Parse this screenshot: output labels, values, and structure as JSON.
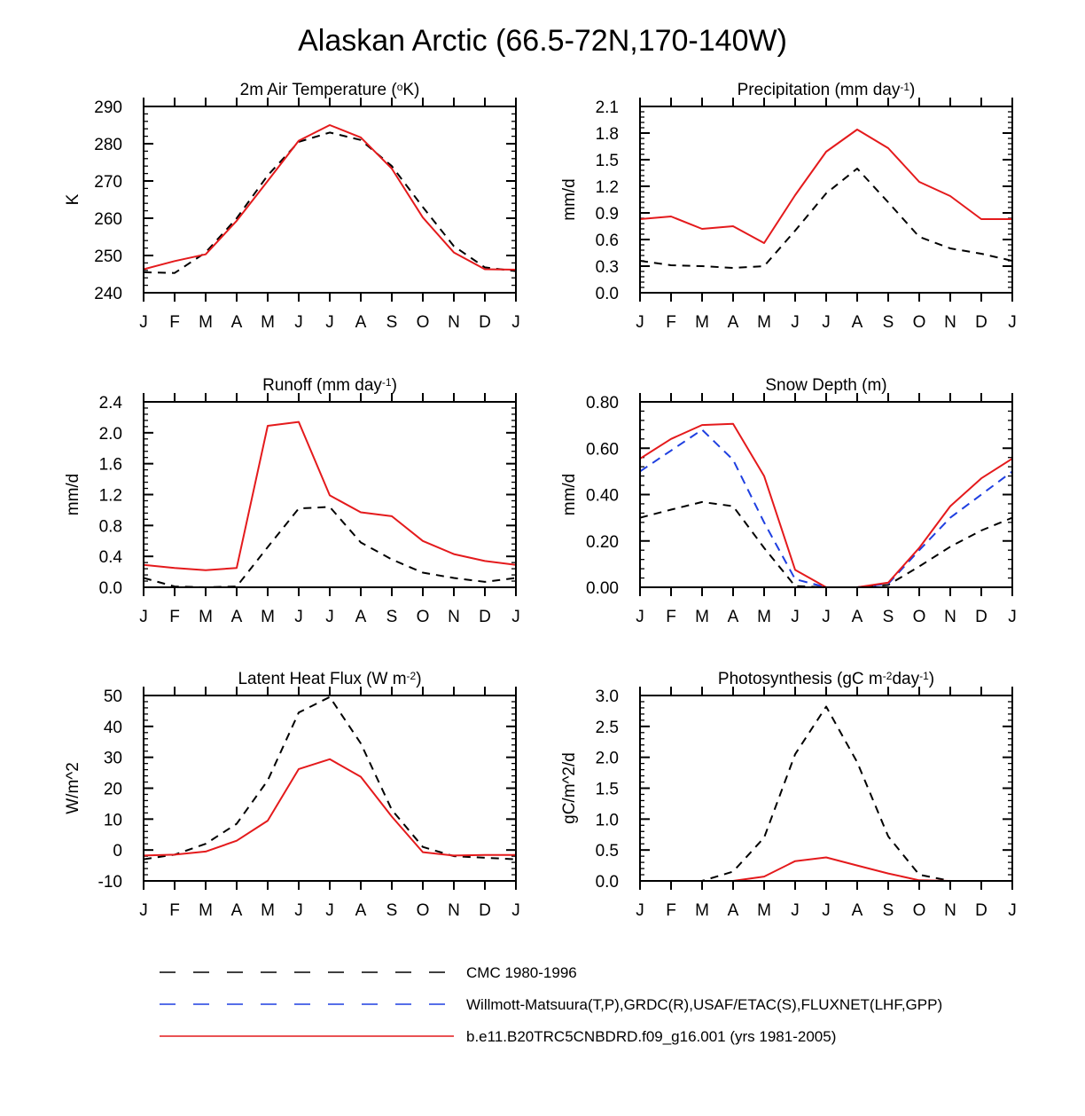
{
  "figure": {
    "title": "Alaskan Arctic (66.5-72N,170-140W)"
  },
  "colors": {
    "cmc": "#000000",
    "obs": "#1f3fe0",
    "model": "#e41a1c"
  },
  "legend": [
    {
      "key": "cmc",
      "label": "CMC 1980-1996",
      "style": "dashed"
    },
    {
      "key": "obs",
      "label": "Willmott-Matsuura(T,P),GRDC(R),USAF/ETAC(S),FLUXNET(LHF,GPP)",
      "style": "dashed"
    },
    {
      "key": "model",
      "label": "b.e11.B20TRC5CNBDRD.f09_g16.001 (yrs 1981-2005)",
      "style": "solid"
    }
  ],
  "chart_data": [
    {
      "id": "air-temperature",
      "type": "line",
      "title": "2m Air Temperature (°K)",
      "title_parts": [
        {
          "t": "2m Air Temperature ("
        },
        {
          "t": "o",
          "sup": true
        },
        {
          "t": "K)"
        }
      ],
      "ylabel": "K",
      "ylim": [
        240,
        290
      ],
      "yticks": [
        "240",
        "250",
        "260",
        "270",
        "280",
        "290"
      ],
      "categories": [
        "J",
        "F",
        "M",
        "A",
        "M",
        "J",
        "J",
        "A",
        "S",
        "O",
        "N",
        "D",
        "J"
      ],
      "series": [
        {
          "key": "cmc",
          "name": "CMC 1980-1996",
          "values": [
            245.5,
            245.3,
            250.8,
            260,
            271.5,
            280.5,
            283,
            281,
            274,
            263,
            252.5,
            246.8,
            245.8
          ]
        },
        {
          "key": "model",
          "name": "b.e11.B20TRC5CNBDRD.f09_g16.001 (yrs 1981-2005)",
          "values": [
            246.3,
            248.5,
            250.3,
            259.3,
            270,
            280.8,
            285,
            281.7,
            273.3,
            260.2,
            250.8,
            246.3,
            246.2
          ]
        }
      ]
    },
    {
      "id": "precipitation",
      "type": "line",
      "title": "Precipitation (mm day-1)",
      "title_parts": [
        {
          "t": "Precipitation (mm day"
        },
        {
          "t": "-1",
          "sup": true
        },
        {
          "t": ")"
        }
      ],
      "ylabel": "mm/d",
      "ylim": [
        0,
        2.1
      ],
      "yticks": [
        "0.0",
        "0.3",
        "0.6",
        "0.9",
        "1.2",
        "1.5",
        "1.8",
        "2.1"
      ],
      "categories": [
        "J",
        "F",
        "M",
        "A",
        "M",
        "J",
        "J",
        "A",
        "S",
        "O",
        "N",
        "D",
        "J"
      ],
      "series": [
        {
          "key": "cmc",
          "name": "CMC 1980-1996",
          "values": [
            0.36,
            0.31,
            0.3,
            0.28,
            0.3,
            0.7,
            1.12,
            1.4,
            1.02,
            0.63,
            0.5,
            0.44,
            0.36
          ]
        },
        {
          "key": "model",
          "name": "b.e11.B20TRC5CNBDRD.f09_g16.001 (yrs 1981-2005)",
          "values": [
            0.83,
            0.86,
            0.72,
            0.75,
            0.56,
            1.1,
            1.59,
            1.84,
            1.63,
            1.25,
            1.09,
            0.83,
            0.83
          ]
        }
      ]
    },
    {
      "id": "runoff",
      "type": "line",
      "title": "Runoff (mm day-1)",
      "title_parts": [
        {
          "t": "Runoff (mm day"
        },
        {
          "t": "-1",
          "sup": true
        },
        {
          "t": ")"
        }
      ],
      "ylabel": "mm/d",
      "ylim": [
        0,
        2.4
      ],
      "yticks": [
        "0.0",
        "0.4",
        "0.8",
        "1.2",
        "1.6",
        "2.0",
        "2.4"
      ],
      "categories": [
        "J",
        "F",
        "M",
        "A",
        "M",
        "J",
        "J",
        "A",
        "S",
        "O",
        "N",
        "D",
        "J"
      ],
      "series": [
        {
          "key": "cmc",
          "name": "CMC 1980-1996",
          "values": [
            0.12,
            0.01,
            0.0,
            0.01,
            0.52,
            1.02,
            1.04,
            0.58,
            0.36,
            0.19,
            0.12,
            0.07,
            0.12
          ]
        },
        {
          "key": "model",
          "name": "b.e11.B20TRC5CNBDRD.f09_g16.001 (yrs 1981-2005)",
          "values": [
            0.29,
            0.25,
            0.22,
            0.25,
            2.09,
            2.14,
            1.19,
            0.97,
            0.92,
            0.6,
            0.43,
            0.34,
            0.29
          ]
        }
      ]
    },
    {
      "id": "snow-depth",
      "type": "line",
      "title": "Snow Depth (m)",
      "title_parts": [
        {
          "t": "Snow Depth (m)"
        }
      ],
      "ylabel": "mm/d",
      "ylim": [
        0,
        0.8
      ],
      "yticks": [
        "0.00",
        "0.20",
        "0.40",
        "0.60",
        "0.80"
      ],
      "categories": [
        "J",
        "F",
        "M",
        "A",
        "M",
        "J",
        "J",
        "A",
        "S",
        "O",
        "N",
        "D",
        "J"
      ],
      "series": [
        {
          "key": "cmc",
          "name": "CMC 1980-1996",
          "values": [
            0.3,
            0.335,
            0.368,
            0.35,
            0.17,
            0.005,
            0.0,
            0.0,
            0.01,
            0.09,
            0.175,
            0.245,
            0.3
          ]
        },
        {
          "key": "obs",
          "name": "Willmott-Matsuura(T,P),GRDC(R),USAF/ETAC(S),FLUXNET(LHF,GPP)",
          "values": [
            0.5,
            0.59,
            0.68,
            0.55,
            0.28,
            0.035,
            0.0,
            0.0,
            0.015,
            0.16,
            0.3,
            0.4,
            0.5
          ]
        },
        {
          "key": "model",
          "name": "b.e11.B20TRC5CNBDRD.f09_g16.001 (yrs 1981-2005)",
          "values": [
            0.555,
            0.64,
            0.7,
            0.705,
            0.48,
            0.075,
            0.0,
            0.0,
            0.02,
            0.17,
            0.35,
            0.47,
            0.555
          ]
        }
      ]
    },
    {
      "id": "latent-heat-flux",
      "type": "line",
      "title": "Latent Heat Flux (W m-2)",
      "title_parts": [
        {
          "t": "Latent Heat Flux (W m"
        },
        {
          "t": "-2",
          "sup": true
        },
        {
          "t": ")"
        }
      ],
      "ylabel": "W/m^2",
      "ylim": [
        -10,
        50
      ],
      "yticks": [
        "-10",
        "0",
        "10",
        "20",
        "30",
        "40",
        "50"
      ],
      "categories": [
        "J",
        "F",
        "M",
        "A",
        "M",
        "J",
        "J",
        "A",
        "S",
        "O",
        "N",
        "D",
        "J"
      ],
      "series": [
        {
          "key": "cmc",
          "name": "CMC 1980-1996",
          "values": [
            -3,
            -1.5,
            2,
            8.5,
            22.5,
            44.5,
            49.5,
            34.5,
            13,
            1,
            -2,
            -2.5,
            -3
          ]
        },
        {
          "key": "model",
          "name": "b.e11.B20TRC5CNBDRD.f09_g16.001 (yrs 1981-2005)",
          "values": [
            -1.8,
            -1.5,
            -0.5,
            3,
            9.5,
            26.2,
            29.4,
            23.7,
            10.8,
            -0.7,
            -1.8,
            -1.6,
            -1.6
          ]
        }
      ]
    },
    {
      "id": "photosynthesis",
      "type": "line",
      "title": "Photosynthesis (gC m-2day-1)",
      "title_parts": [
        {
          "t": "Photosynthesis (gC m"
        },
        {
          "t": "-2",
          "sup": true
        },
        {
          "t": "day"
        },
        {
          "t": "-1",
          "sup": true
        },
        {
          "t": ")"
        }
      ],
      "ylabel": "gC/m^2/d",
      "ylim": [
        0,
        3.0
      ],
      "yticks": [
        "0.0",
        "0.5",
        "1.0",
        "1.5",
        "2.0",
        "2.5",
        "3.0"
      ],
      "categories": [
        "J",
        "F",
        "M",
        "A",
        "M",
        "J",
        "J",
        "A",
        "S",
        "O",
        "N",
        "D",
        "J"
      ],
      "series": [
        {
          "key": "cmc",
          "name": "CMC 1980-1996",
          "values": [
            0,
            0,
            0,
            0.15,
            0.7,
            2.05,
            2.82,
            1.92,
            0.72,
            0.1,
            0,
            0,
            0
          ]
        },
        {
          "key": "model",
          "name": "b.e11.B20TRC5CNBDRD.f09_g16.001 (yrs 1981-2005)",
          "values": [
            0,
            0,
            0,
            0,
            0.07,
            0.32,
            0.38,
            0.25,
            0.12,
            0.01,
            0,
            0,
            0
          ]
        }
      ]
    }
  ]
}
